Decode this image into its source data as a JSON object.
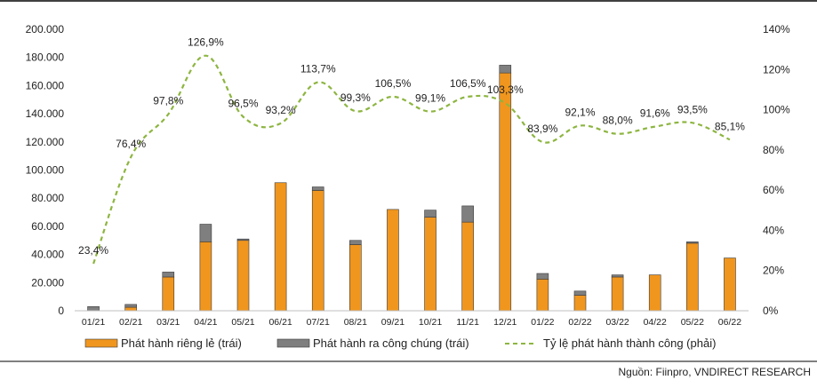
{
  "chart_data": {
    "type": "bar",
    "stacked": true,
    "categories": [
      "01/21",
      "02/21",
      "03/21",
      "04/21",
      "05/21",
      "06/21",
      "07/21",
      "08/21",
      "09/21",
      "10/21",
      "11/21",
      "12/21",
      "01/22",
      "02/22",
      "03/22",
      "04/22",
      "05/22",
      "06/22"
    ],
    "series": [
      {
        "name": "Phát hành riêng lẻ (trái)",
        "type": "bar",
        "axis": "left",
        "color": "#f0961e",
        "values": [
          0,
          2500,
          24000,
          49000,
          50000,
          91000,
          85500,
          47000,
          72000,
          66500,
          63000,
          169000,
          22500,
          11000,
          24000,
          25500,
          48000,
          37500
        ]
      },
      {
        "name": "Phát hành ra công chúng (trái)",
        "type": "bar",
        "axis": "left",
        "color": "#7f7f7f",
        "values": [
          3000,
          2000,
          3500,
          12500,
          1000,
          0,
          2500,
          3000,
          0,
          5000,
          11500,
          5500,
          4000,
          3000,
          1500,
          0,
          1000,
          0
        ]
      },
      {
        "name": "Tỷ lệ phát hành thành công (phải)",
        "type": "line",
        "axis": "right",
        "color": "#8db540",
        "style": "dashed",
        "smooth": true,
        "values": [
          23.4,
          76.4,
          97.8,
          126.9,
          96.5,
          93.2,
          113.7,
          99.3,
          106.5,
          99.1,
          106.5,
          103.3,
          83.9,
          92.1,
          88.0,
          91.6,
          93.5,
          85.1
        ],
        "labels": [
          "23,4%",
          "76,4%",
          "97,8%",
          "126,9%",
          "96,5%",
          "93,2%",
          "113,7%",
          "99,3%",
          "106,5%",
          "99,1%",
          "106,5%",
          "103,3%",
          "83,9%",
          "92,1%",
          "88,0%",
          "91,6%",
          "93,5%",
          "85,1%"
        ]
      }
    ],
    "y_left": {
      "ylim": [
        0,
        200000
      ],
      "ticks": [
        0,
        20000,
        40000,
        60000,
        80000,
        100000,
        120000,
        140000,
        160000,
        180000,
        200000
      ],
      "tick_labels": [
        "0",
        "20.000",
        "40.000",
        "60.000",
        "80.000",
        "100.000",
        "120.000",
        "140.000",
        "160.000",
        "180.000",
        "200.000"
      ]
    },
    "y_right": {
      "ylim": [
        0,
        140
      ],
      "ticks": [
        0,
        20,
        40,
        60,
        80,
        100,
        120,
        140
      ],
      "tick_labels": [
        "0%",
        "20%",
        "40%",
        "60%",
        "80%",
        "100%",
        "120%",
        "140%"
      ]
    },
    "grid": false,
    "legend_position": "bottom",
    "source": "Nguồn: Fiinpro, VNDIRECT RESEARCH"
  }
}
